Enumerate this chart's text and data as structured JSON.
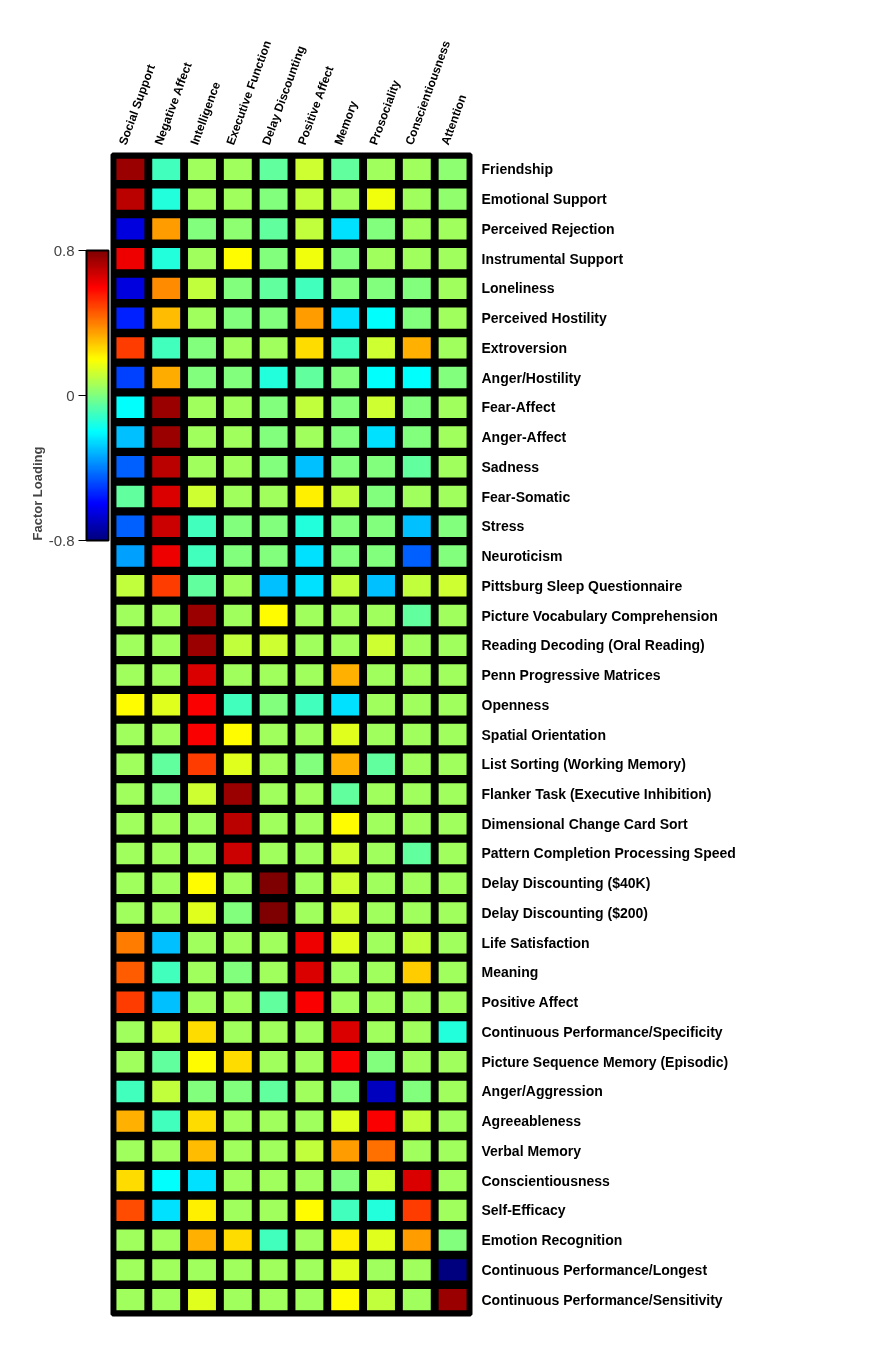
{
  "chart_data": {
    "type": "heatmap",
    "clabel": "Factor Loading",
    "categories": [
      "Social Support",
      "Negative Affect",
      "Intelligence",
      "Executive Function",
      "Delay Discounting",
      "Positive Affect",
      "Memory",
      "Prosociality",
      "Conscientiousness",
      "Attention"
    ],
    "y_categories": [
      "Friendship",
      "Emotional Support",
      "Perceived Rejection",
      "Instrumental Support",
      "Loneliness",
      "Perceived Hostility",
      "Extroversion",
      "Anger/Hostility",
      "Fear-Affect",
      "Anger-Affect",
      "Sadness",
      "Fear-Somatic",
      "Stress",
      "Neuroticism",
      "Pittsburg Sleep Questionnaire",
      "Picture Vocabulary Comprehension",
      "Reading Decoding (Oral Reading)",
      "Penn Progressive Matrices",
      "Openness",
      "Spatial Orientation",
      "List Sorting (Working Memory)",
      "Flanker Task (Executive Inhibition)",
      "Dimensional Change Card Sort",
      "Pattern Completion Processing Speed",
      "Delay Discounting ($40K)",
      "Delay Discounting ($200)",
      "Life Satisfaction",
      "Meaning",
      "Positive Affect",
      "Continuous Performance/Specificity",
      "Picture Sequence Memory (Episodic)",
      "Anger/Aggression",
      "Agreeableness",
      "Verbal Memory",
      "Conscientiousness",
      "Self-Efficacy",
      "Emotion Recognition",
      "Continuous Performance/Longest",
      "Continuous Performance/Sensitivity"
    ],
    "cells": [
      [
        0.75,
        -0.1,
        0.05,
        0.05,
        -0.05,
        0.12,
        -0.05,
        0.05,
        0.05,
        0.02
      ],
      [
        0.7,
        -0.15,
        0.05,
        0.05,
        0.0,
        0.1,
        0.05,
        0.18,
        0.05,
        0.03
      ],
      [
        -0.65,
        0.35,
        0.0,
        0.02,
        -0.05,
        0.1,
        -0.25,
        0.0,
        0.05,
        0.05
      ],
      [
        0.62,
        -0.15,
        0.05,
        0.2,
        0.0,
        0.18,
        0.0,
        0.05,
        0.05,
        0.05
      ],
      [
        -0.65,
        0.38,
        0.1,
        0.0,
        -0.05,
        -0.1,
        0.0,
        0.0,
        0.0,
        0.05
      ],
      [
        -0.55,
        0.3,
        0.05,
        0.0,
        0.0,
        0.35,
        -0.25,
        -0.2,
        0.0,
        0.05
      ],
      [
        0.5,
        -0.1,
        0.0,
        0.05,
        0.05,
        0.25,
        -0.1,
        0.12,
        0.32,
        0.05
      ],
      [
        -0.5,
        0.33,
        0.0,
        0.0,
        -0.15,
        -0.05,
        0.0,
        -0.2,
        -0.2,
        0.0
      ],
      [
        -0.2,
        0.75,
        0.05,
        0.05,
        0.0,
        0.1,
        0.0,
        0.12,
        0.0,
        0.05
      ],
      [
        -0.3,
        0.75,
        0.05,
        0.05,
        0.0,
        0.05,
        0.0,
        -0.25,
        0.0,
        0.05
      ],
      [
        -0.45,
        0.7,
        0.05,
        0.05,
        0.0,
        -0.3,
        0.0,
        0.0,
        -0.05,
        0.05
      ],
      [
        -0.05,
        0.65,
        0.12,
        0.05,
        0.05,
        0.22,
        0.1,
        0.0,
        0.05,
        0.05
      ],
      [
        -0.45,
        0.68,
        -0.1,
        0.0,
        0.0,
        -0.15,
        0.0,
        0.0,
        -0.3,
        0.0
      ],
      [
        -0.35,
        0.62,
        -0.1,
        0.0,
        0.0,
        -0.25,
        0.0,
        0.0,
        -0.45,
        0.0
      ],
      [
        0.1,
        0.5,
        -0.05,
        0.05,
        -0.3,
        -0.25,
        0.1,
        -0.3,
        0.1,
        0.12
      ],
      [
        0.05,
        0.05,
        0.75,
        0.05,
        0.2,
        0.05,
        0.05,
        0.05,
        -0.05,
        0.05
      ],
      [
        0.05,
        0.05,
        0.75,
        0.1,
        0.12,
        0.05,
        0.05,
        0.12,
        0.05,
        0.05
      ],
      [
        0.05,
        0.05,
        0.65,
        0.05,
        0.05,
        0.05,
        0.32,
        0.05,
        0.05,
        0.05
      ],
      [
        0.2,
        0.15,
        0.6,
        -0.1,
        0.0,
        -0.1,
        -0.25,
        0.05,
        0.05,
        0.05
      ],
      [
        0.05,
        0.05,
        0.6,
        0.2,
        0.05,
        0.05,
        0.15,
        0.05,
        0.05,
        0.05
      ],
      [
        0.05,
        -0.05,
        0.5,
        0.15,
        0.05,
        0.0,
        0.32,
        -0.05,
        0.05,
        0.05
      ],
      [
        0.05,
        0.0,
        0.12,
        0.75,
        0.05,
        0.05,
        -0.05,
        0.05,
        0.05,
        0.05
      ],
      [
        0.05,
        0.05,
        0.05,
        0.7,
        0.05,
        0.05,
        0.2,
        0.05,
        0.05,
        0.05
      ],
      [
        0.05,
        0.05,
        0.05,
        0.68,
        0.05,
        0.05,
        0.12,
        0.05,
        -0.05,
        0.05
      ],
      [
        0.05,
        0.05,
        0.2,
        0.05,
        0.8,
        0.05,
        0.12,
        0.05,
        0.05,
        0.05
      ],
      [
        0.05,
        0.05,
        0.15,
        0.0,
        0.8,
        0.05,
        0.12,
        0.05,
        0.05,
        0.05
      ],
      [
        0.4,
        -0.3,
        0.05,
        0.05,
        0.05,
        0.62,
        0.15,
        0.05,
        0.1,
        0.05
      ],
      [
        0.45,
        -0.1,
        0.05,
        0.0,
        0.05,
        0.65,
        0.05,
        0.05,
        0.28,
        0.05
      ],
      [
        0.5,
        -0.3,
        0.05,
        0.05,
        -0.05,
        0.6,
        0.05,
        0.05,
        0.05,
        0.05
      ],
      [
        0.05,
        0.1,
        0.25,
        0.05,
        0.05,
        0.05,
        0.65,
        0.05,
        0.05,
        -0.15
      ],
      [
        0.05,
        -0.05,
        0.2,
        0.25,
        0.05,
        0.05,
        0.6,
        0.0,
        0.05,
        0.05
      ],
      [
        -0.1,
        0.1,
        0.0,
        0.0,
        -0.05,
        0.05,
        0.0,
        -0.7,
        0.0,
        0.05
      ],
      [
        0.32,
        -0.1,
        0.25,
        0.05,
        0.05,
        0.05,
        0.15,
        0.6,
        0.1,
        0.05
      ],
      [
        0.05,
        0.05,
        0.3,
        0.05,
        0.05,
        0.1,
        0.35,
        0.42,
        0.05,
        0.05
      ],
      [
        0.25,
        -0.2,
        -0.25,
        0.05,
        0.05,
        0.05,
        0.0,
        0.12,
        0.65,
        0.05
      ],
      [
        0.48,
        -0.25,
        0.22,
        0.05,
        0.05,
        0.2,
        -0.1,
        -0.15,
        0.5,
        0.05
      ],
      [
        0.05,
        0.05,
        0.32,
        0.25,
        -0.1,
        0.05,
        0.22,
        0.15,
        0.35,
        0.0
      ],
      [
        0.05,
        0.05,
        0.05,
        0.05,
        0.05,
        0.05,
        0.15,
        0.05,
        0.05,
        -0.8
      ],
      [
        0.05,
        0.05,
        0.15,
        0.05,
        0.05,
        0.05,
        0.2,
        0.1,
        0.05,
        0.75
      ]
    ],
    "clim": [
      -0.8,
      0.8
    ],
    "cticks": [
      -0.8,
      0,
      0.8
    ]
  }
}
